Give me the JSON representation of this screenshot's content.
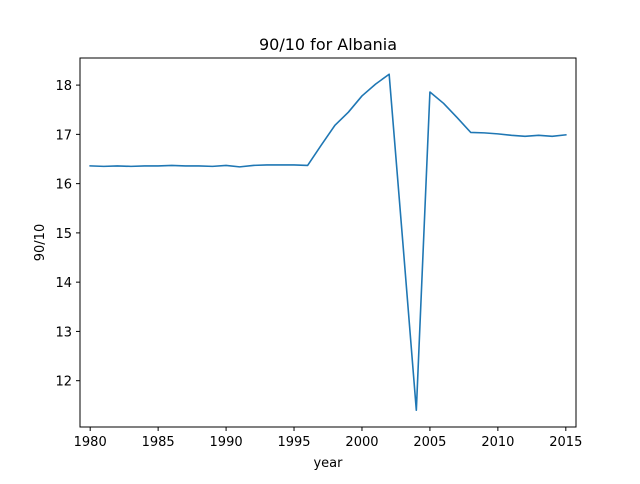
{
  "chart_data": {
    "type": "line",
    "title": "90/10 for Albania",
    "xlabel": "year",
    "ylabel": "90/10",
    "xlim": [
      1979.25,
      2015.75
    ],
    "ylim": [
      11.06,
      18.55
    ],
    "xticks": [
      1980,
      1985,
      1990,
      1995,
      2000,
      2005,
      2010,
      2015
    ],
    "yticks": [
      12,
      13,
      14,
      15,
      16,
      17,
      18
    ],
    "grid": false,
    "line_color": "#1f77b4",
    "series": [
      {
        "x": [
          1980,
          1981,
          1982,
          1983,
          1984,
          1985,
          1986,
          1987,
          1988,
          1989,
          1990,
          1991,
          1992,
          1993,
          1994,
          1995,
          1996,
          1997,
          1998,
          1999,
          2000,
          2001,
          2002,
          2003,
          2004,
          2005,
          2006,
          2007,
          2008,
          2009,
          2010,
          2011,
          2012,
          2013,
          2014,
          2015
        ],
        "y": [
          16.36,
          16.35,
          16.36,
          16.35,
          16.36,
          16.36,
          16.37,
          16.36,
          16.36,
          16.35,
          16.37,
          16.34,
          16.37,
          16.38,
          16.38,
          16.38,
          16.37,
          16.78,
          17.18,
          17.45,
          17.78,
          18.02,
          18.22,
          14.83,
          11.4,
          17.86,
          17.63,
          17.34,
          17.04,
          17.03,
          17.01,
          16.98,
          16.96,
          16.98,
          16.96,
          16.99
        ]
      }
    ]
  }
}
